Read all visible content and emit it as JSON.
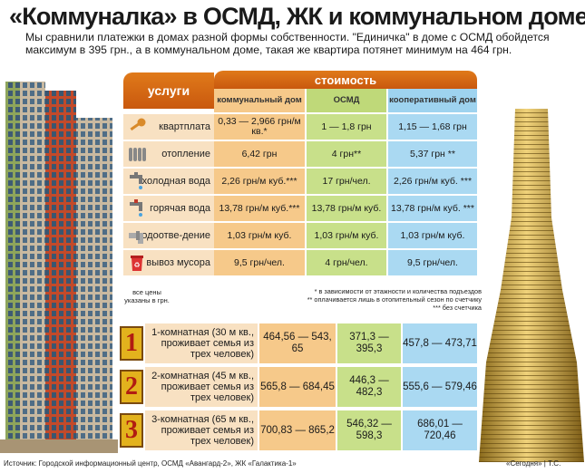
{
  "title": "«Коммуналка» в ОСМД, ЖК и коммунальном доме",
  "subtitle": "Мы сравнили платежки в домах разной формы собственности. \"Единичка\" в доме с ОСМД обойдется максимум в 395 грн., а в коммунальном доме, такая же квартира потянет минимум на 464 грн.",
  "table": {
    "services_header": "услуги",
    "cost_header": "стоимость",
    "columns": [
      "коммунальный дом",
      "ОСМД",
      "кооперативный дом"
    ],
    "rows": [
      {
        "service": "квартплата",
        "icon": "key-icon",
        "values": [
          "0,33 — 2,966 грн/м кв.*",
          "1 — 1,8 грн",
          "1,15 — 1,68 грн"
        ]
      },
      {
        "service": "отопление",
        "icon": "radiator-icon",
        "values": [
          "6,42 грн",
          "4 грн**",
          "5,37 грн **"
        ]
      },
      {
        "service": "холодная вода",
        "icon": "cold-tap-icon",
        "values": [
          "2,26 грн/м куб.***",
          "17 грн/чел.",
          "2,26 грн/м куб. ***"
        ]
      },
      {
        "service": "горячая вода",
        "icon": "hot-tap-icon",
        "values": [
          "13,78 грн/м куб.***",
          "13,78 грн/м куб.",
          "13,78 грн/м куб. ***"
        ]
      },
      {
        "service": "водоотве-дение",
        "icon": "drain-pipe-icon",
        "values": [
          "1,03 грн/м куб.",
          "1,03 грн/м куб.",
          "1,03 грн/м куб."
        ]
      },
      {
        "service": "вывоз мусора",
        "icon": "trash-bin-icon",
        "values": [
          "9,5 грн/чел.",
          "4 грн/чел.",
          "9,5 грн/чел."
        ]
      }
    ],
    "prices_note": "все цены указаны в грн.",
    "footnotes": [
      "* в зависимости от этажности и количества подъездов",
      "** оплачивается лишь в отопительный сезон по счетчику",
      "*** без счетчика"
    ]
  },
  "apartments": [
    {
      "num": "1",
      "label": "1-комнатная (30 м кв., проживает семья из трех человек)",
      "values": [
        "464,56 — 543, 65",
        "371,3 — 395,3",
        "457,8 — 473,71"
      ]
    },
    {
      "num": "2",
      "label": "2-комнатная (45 м кв., проживает семья из трех человек)",
      "values": [
        "565,8 — 684,45",
        "446,3 — 482,3",
        "555,6 — 579,46"
      ]
    },
    {
      "num": "3",
      "label": "3-комнатная (65 м кв., проживает семья из трех человек)",
      "values": [
        "700,83 — 865,2",
        "546,32 — 598,3",
        "686,01 — 720,46"
      ]
    }
  ],
  "source": "Источник: Городской информационный центр, ОСМД «Авангард-2», ЖК «Галактика-1»",
  "credit": "«Сегодня» | Т.С."
}
